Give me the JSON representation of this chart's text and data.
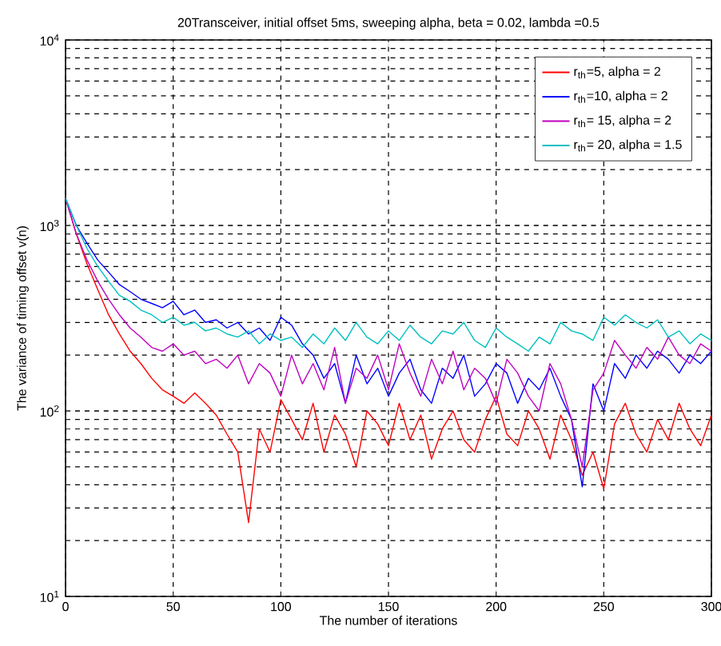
{
  "chart_data": {
    "type": "line",
    "title": "20Transceiver, initial offset 5ms, sweeping alpha, beta = 0.02, lambda =0.5",
    "xlabel": "The number of iterations",
    "ylabel": "The variance of timing offset v(n)",
    "x": [
      0,
      5,
      10,
      15,
      20,
      25,
      30,
      35,
      40,
      45,
      50,
      55,
      60,
      65,
      70,
      75,
      80,
      85,
      90,
      95,
      100,
      105,
      110,
      115,
      120,
      125,
      130,
      135,
      140,
      145,
      150,
      155,
      160,
      165,
      170,
      175,
      180,
      185,
      190,
      195,
      200,
      205,
      210,
      215,
      220,
      225,
      230,
      235,
      240,
      245,
      250,
      255,
      260,
      265,
      270,
      275,
      280,
      285,
      290,
      295,
      300
    ],
    "series": [
      {
        "name": "r$_{th}$=5, alpha = 2",
        "color": "#ff0000",
        "values": [
          1400,
          900,
          620,
          450,
          330,
          260,
          210,
          180,
          150,
          130,
          120,
          110,
          125,
          110,
          95,
          75,
          60,
          25,
          80,
          60,
          115,
          90,
          70,
          110,
          60,
          95,
          75,
          50,
          100,
          85,
          65,
          110,
          70,
          95,
          55,
          80,
          100,
          70,
          60,
          90,
          120,
          75,
          65,
          100,
          80,
          55,
          95,
          70,
          45,
          60,
          38,
          85,
          110,
          75,
          60,
          90,
          70,
          110,
          80,
          65,
          95
        ]
      },
      {
        "name": "r$_{th}$=10, alpha = 2",
        "color": "#0000ff",
        "values": [
          1400,
          1000,
          800,
          650,
          560,
          480,
          440,
          400,
          380,
          360,
          390,
          330,
          350,
          300,
          310,
          280,
          300,
          260,
          280,
          240,
          320,
          290,
          230,
          200,
          150,
          180,
          110,
          200,
          140,
          170,
          120,
          160,
          190,
          130,
          110,
          170,
          150,
          200,
          120,
          140,
          180,
          160,
          110,
          150,
          130,
          170,
          120,
          90,
          39,
          140,
          100,
          180,
          150,
          200,
          170,
          210,
          190,
          160,
          200,
          180,
          210
        ]
      },
      {
        "name": "r$_{th}$= 15, alpha = 2",
        "color": "#c000c0",
        "values": [
          1400,
          900,
          650,
          500,
          400,
          330,
          280,
          250,
          220,
          210,
          230,
          200,
          210,
          180,
          190,
          170,
          200,
          140,
          180,
          160,
          120,
          200,
          140,
          180,
          130,
          220,
          110,
          170,
          150,
          200,
          130,
          230,
          160,
          120,
          190,
          140,
          210,
          130,
          170,
          150,
          110,
          190,
          160,
          120,
          100,
          180,
          140,
          90,
          50,
          130,
          160,
          240,
          200,
          170,
          220,
          190,
          250,
          200,
          180,
          230,
          210
        ]
      },
      {
        "name": "r$_{th}$= 20, alpha = 1.5",
        "color": "#00c0c0",
        "values": [
          1400,
          1000,
          750,
          600,
          500,
          420,
          390,
          350,
          330,
          300,
          320,
          290,
          300,
          270,
          280,
          260,
          250,
          270,
          230,
          260,
          240,
          250,
          220,
          260,
          230,
          280,
          240,
          300,
          250,
          230,
          270,
          240,
          290,
          250,
          230,
          270,
          260,
          300,
          240,
          220,
          280,
          250,
          230,
          210,
          250,
          230,
          300,
          270,
          260,
          240,
          320,
          290,
          330,
          300,
          280,
          310,
          250,
          270,
          230,
          260,
          240
        ]
      }
    ],
    "xlim": [
      0,
      300
    ],
    "xticks": [
      0,
      50,
      100,
      150,
      200,
      250,
      300
    ],
    "ylim": [
      10,
      10000
    ],
    "yticks": [
      {
        "value": 10,
        "label": "10$^{1}$"
      },
      {
        "value": 100,
        "label": "10$^{2}$"
      },
      {
        "value": 1000,
        "label": "10$^{3}$"
      },
      {
        "value": 10000,
        "label": "10$^{4}$"
      }
    ],
    "log": "y",
    "grid": true,
    "legend": "top right",
    "line_style": "solid",
    "marker": "none"
  }
}
